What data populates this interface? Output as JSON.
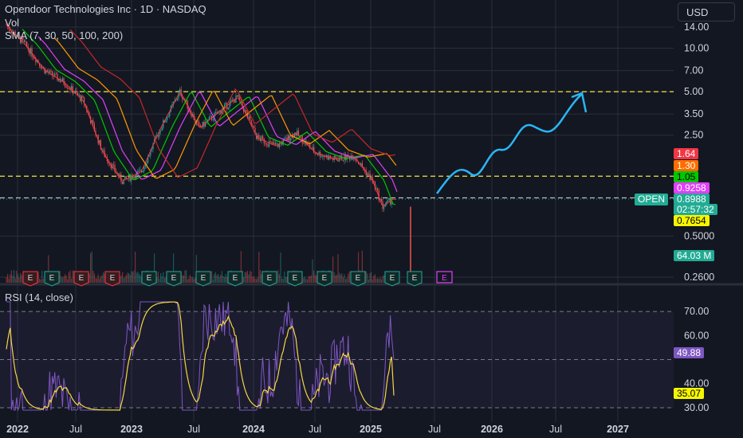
{
  "header": {
    "title": "Opendoor Technologies Inc · 1D · NASDAQ",
    "vol_label": "Vol",
    "sma_label": "SMA (7, 30, 50, 100, 200)",
    "rsi_label": "RSI (14, close)"
  },
  "toolbar": {
    "currency": "USD"
  },
  "symbol_tag": "OPEN",
  "price_labels": [
    {
      "text": "1.64",
      "bg": "#f23645",
      "fg": "#ffffff"
    },
    {
      "text": "1.30",
      "bg": "#ff6d00",
      "fg": "#ffffff"
    },
    {
      "text": "1.05",
      "bg": "#00c800",
      "fg": "#000000"
    },
    {
      "text": "0.9258",
      "bg": "#e040fb",
      "fg": "#ffffff"
    },
    {
      "text": "0.8988",
      "bg": "#22ab94",
      "fg": "#ffffff"
    },
    {
      "text": "02:57:32",
      "bg": "#22ab94",
      "fg": "#ffffff"
    },
    {
      "text": "0.7654",
      "bg": "#f5f500",
      "fg": "#000000"
    },
    {
      "text": "64.03 M",
      "bg": "#22ab94",
      "fg": "#ffffff"
    },
    {
      "text": "49.88",
      "bg": "#7e57c2",
      "fg": "#ffffff"
    },
    {
      "text": "35.07",
      "bg": "#f5f500",
      "fg": "#000000"
    }
  ],
  "colors": {
    "background": "#131722",
    "grid": "#2a2e39",
    "candle_up": "#26a69a",
    "candle_down": "#ef5350",
    "sma7": "#f23645",
    "sma30": "#00c800",
    "sma50": "#e040fb",
    "sma100": "#ff9800",
    "sma200": "#c62828",
    "level_lines": "#f5e642",
    "arrow": "#29b6f6",
    "rsi": "#7e57c2",
    "rsi_ma": "#f5d742"
  },
  "chart_data": [
    {
      "type": "line",
      "title": "Opendoor Technologies Inc · 1D · NASDAQ",
      "scale": "log",
      "y_ticks": [
        "14.00",
        "10.00",
        "7.00",
        "5.00",
        "3.50",
        "2.50",
        "0.5000",
        "0.2600"
      ],
      "x_ticks": [
        "2022",
        "Jul",
        "2023",
        "Jul",
        "2024",
        "Jul",
        "2025",
        "Jul",
        "2026",
        "Jul",
        "2027"
      ],
      "ylim": [
        0.26,
        16
      ],
      "series": [
        {
          "x": [
            "2022-01",
            "2022-03",
            "2022-05",
            "2022-07",
            "2022-09",
            "2022-11",
            "2023-01",
            "2023-03",
            "2023-05",
            "2023-07",
            "2023-09",
            "2023-11",
            "2024-01",
            "2024-03",
            "2024-05",
            "2024-07",
            "2024-09",
            "2024-11",
            "2025-01",
            "2025-03",
            "2025-04",
            "2025-05"
          ],
          "y": [
            14.5,
            10.5,
            7.0,
            5.8,
            4.3,
            1.9,
            1.2,
            1.4,
            2.8,
            5.0,
            2.8,
            3.6,
            4.6,
            2.4,
            2.1,
            2.6,
            1.9,
            1.7,
            1.8,
            1.2,
            0.8,
            0.9
          ]
        }
      ],
      "events": {
        "earnings_up": [
          "2022-10",
          "2022-12",
          "2023-03",
          "2023-05",
          "2023-07",
          "2023-10",
          "2023-12",
          "2024-03",
          "2024-05",
          "2024-08",
          "2024-11",
          "2025-02",
          "2025-05"
        ],
        "earnings_down": [
          "2022-01",
          "2022-03",
          "2022-05",
          "2022-08"
        ],
        "earnings_future": [
          "2025-08"
        ]
      },
      "horizontal_levels": [
        5.0,
        1.3,
        0.92
      ],
      "forecast_arrow": "up",
      "grid": true
    },
    {
      "type": "line",
      "title": "RSI (14, close)",
      "y_ticks": [
        "70.00",
        "60.00",
        "40.00",
        "30.00"
      ],
      "ylim": [
        28,
        75
      ],
      "bands": [
        70,
        50,
        30
      ],
      "last_rsi": 49.88,
      "last_ma": 35.07
    }
  ]
}
